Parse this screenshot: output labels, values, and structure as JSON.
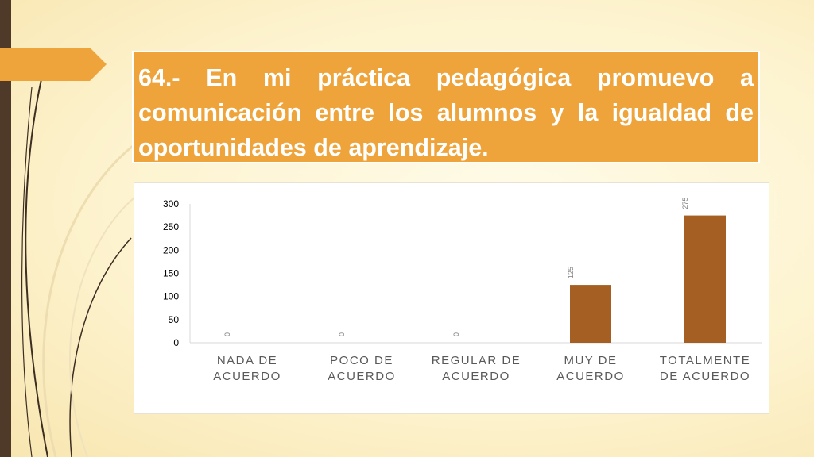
{
  "slide": {
    "title": "64.- En mi práctica pedagógica promuevo a comunicación entre los alumnos y la igualdad de oportunidades de aprendizaje."
  },
  "colors": {
    "accent": "#eea43a",
    "bar": "#a55f22",
    "left_bar": "#4f3a2a",
    "axis_text": "#000000",
    "category_text": "#595959",
    "data_label": "#7f7f7f"
  },
  "chart_data": {
    "type": "bar",
    "categories": [
      [
        "NADA DE",
        "ACUERDO"
      ],
      [
        "POCO DE",
        "ACUERDO"
      ],
      [
        "REGULAR DE",
        "ACUERDO"
      ],
      [
        "MUY DE",
        "ACUERDO"
      ],
      [
        "TOTALMENTE",
        "DE ACUERDO"
      ]
    ],
    "values": [
      0,
      0,
      0,
      125,
      275
    ],
    "ylim": [
      0,
      300
    ],
    "yticks": [
      0,
      50,
      100,
      150,
      200,
      250,
      300
    ],
    "data_labels": true,
    "grid": false,
    "legend": "none"
  }
}
